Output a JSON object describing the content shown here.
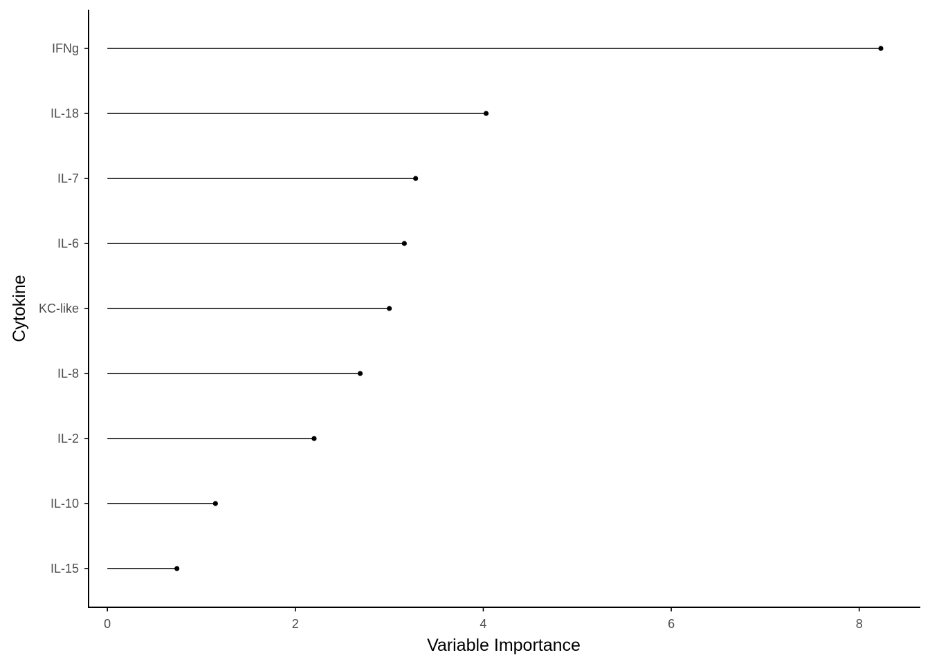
{
  "chart_data": {
    "type": "lollipop",
    "title": "",
    "xlabel": "Variable Importance",
    "ylabel": "Cytokine",
    "xlim": [
      -0.2,
      8.65
    ],
    "x_ticks": [
      0,
      2,
      4,
      6,
      8
    ],
    "x_tick_labels": [
      "0",
      "2",
      "4",
      "6",
      "8"
    ],
    "grid": false,
    "legend": "none",
    "categories": [
      "IFNg",
      "IL-18",
      "IL-7",
      "IL-6",
      "KC-like",
      "IL-8",
      "IL-2",
      "IL-10",
      "IL-15"
    ],
    "values": [
      8.23,
      4.03,
      3.28,
      3.16,
      3.0,
      2.69,
      2.2,
      1.15,
      0.74
    ],
    "colors": {
      "line": "#000000",
      "axis": "#000000",
      "tick_text": "#4d4d4d"
    }
  }
}
